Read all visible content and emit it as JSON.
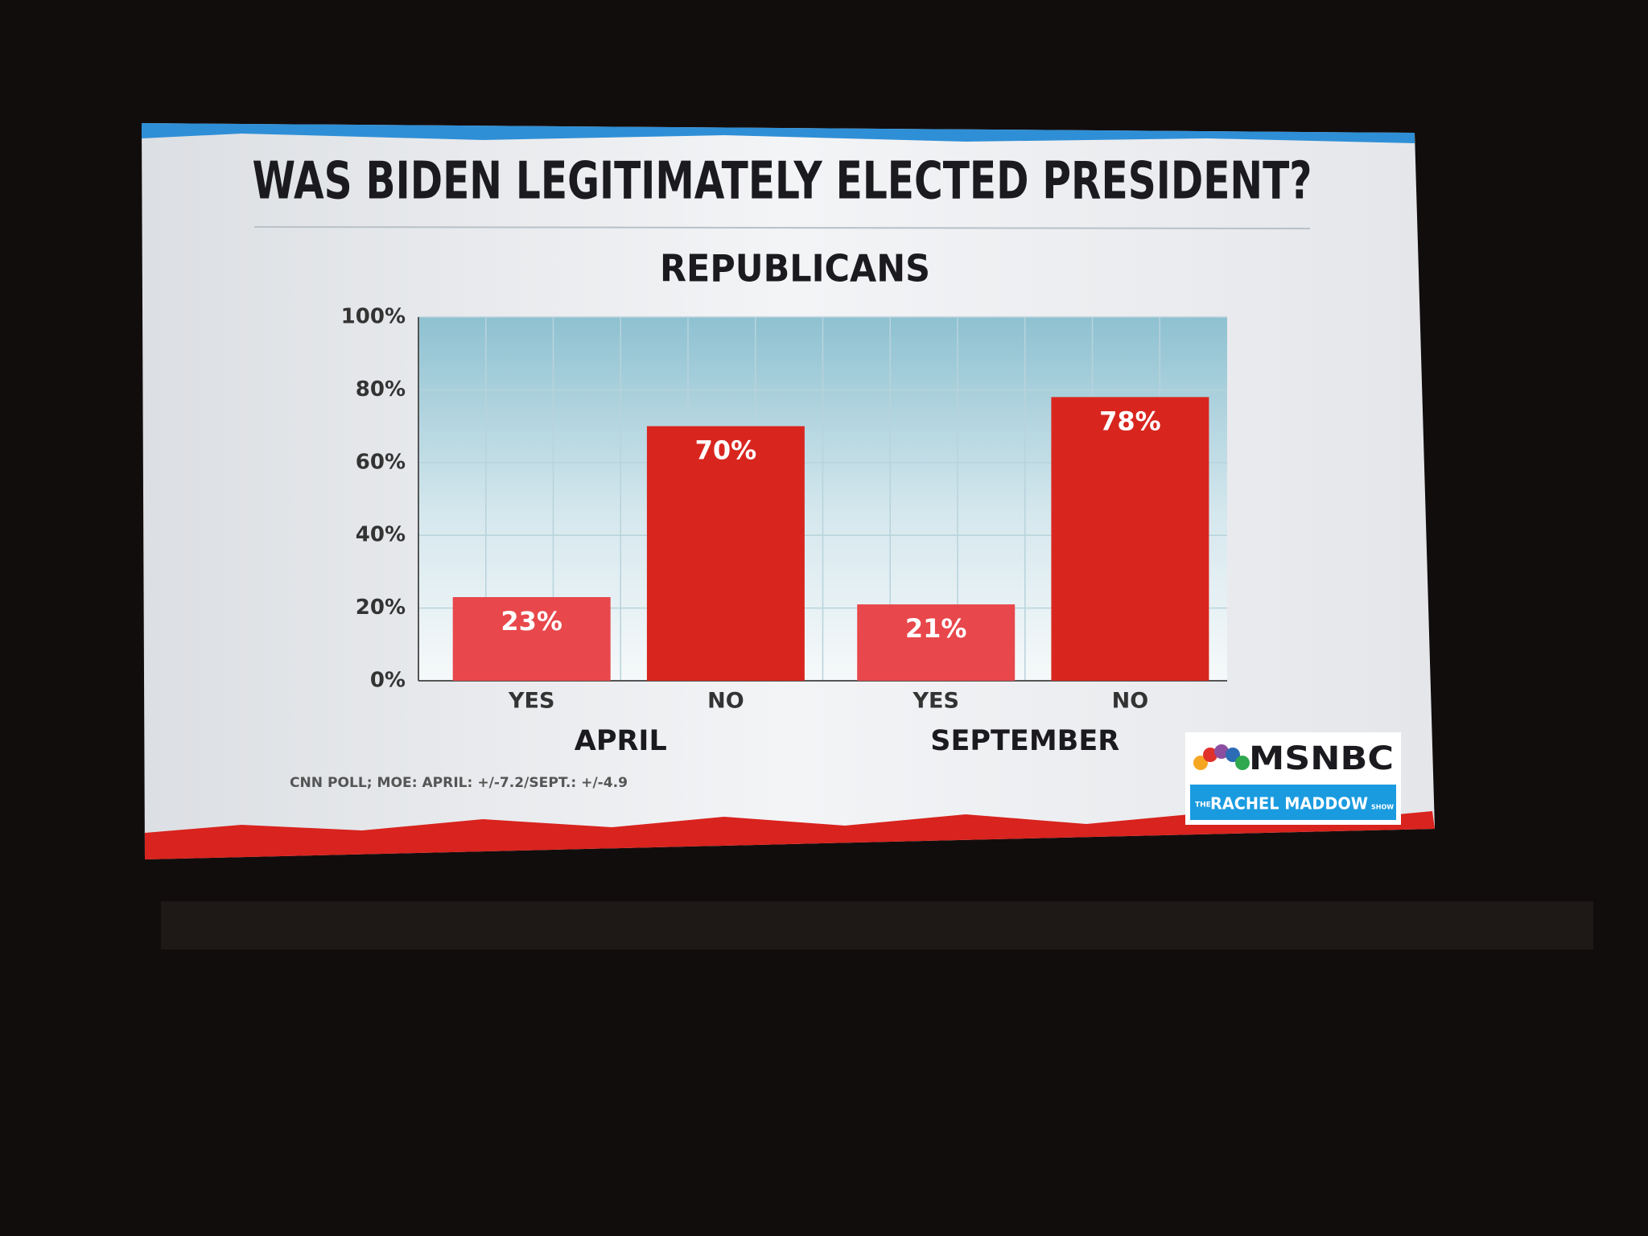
{
  "chart_data": {
    "type": "bar",
    "title": "WAS BIDEN LEGITIMATELY ELECTED PRESIDENT?",
    "subtitle": "REPUBLICANS",
    "categories": [
      "YES",
      "NO",
      "YES",
      "NO"
    ],
    "groups": [
      "APRIL",
      "SEPTEMBER"
    ],
    "values": [
      23,
      70,
      21,
      78
    ],
    "value_labels": [
      "23%",
      "70%",
      "21%",
      "78%"
    ],
    "colors": [
      "#e8474b",
      "#d8261f",
      "#e8474b",
      "#d8261f"
    ],
    "ylim": [
      0,
      100
    ],
    "yticks": [
      {
        "value": 0,
        "label": "0%"
      },
      {
        "value": 20,
        "label": "20%"
      },
      {
        "value": 40,
        "label": "40%"
      },
      {
        "value": 60,
        "label": "60%"
      },
      {
        "value": 80,
        "label": "80%"
      },
      {
        "value": 100,
        "label": "100%"
      }
    ],
    "grid": true,
    "source": "CNN POLL; MOE: APRIL: +/-7.2/SEPT.: +/-4.9"
  },
  "branding": {
    "network": "MSNBC",
    "show_prefix": "THE",
    "show": "RACHEL MADDOW",
    "show_suffix": "SHOW"
  }
}
